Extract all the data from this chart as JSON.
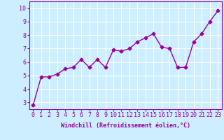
{
  "x": [
    0,
    1,
    2,
    3,
    4,
    5,
    6,
    7,
    8,
    9,
    10,
    11,
    12,
    13,
    14,
    15,
    16,
    17,
    18,
    19,
    20,
    21,
    22,
    23
  ],
  "y": [
    2.8,
    4.9,
    4.9,
    5.1,
    5.5,
    5.6,
    6.2,
    5.6,
    6.2,
    5.6,
    6.9,
    6.8,
    7.0,
    7.5,
    7.8,
    8.1,
    7.1,
    7.0,
    5.6,
    5.6,
    7.5,
    8.1,
    9.0,
    9.8
  ],
  "line_color": "#990099",
  "marker": "D",
  "marker_size": 2.5,
  "background_color": "#cceeff",
  "grid_color": "#ffffff",
  "xlabel": "Windchill (Refroidissement éolien,°C)",
  "ylim": [
    2.5,
    10.5
  ],
  "xlim": [
    -0.5,
    23.5
  ],
  "yticks": [
    3,
    4,
    5,
    6,
    7,
    8,
    9,
    10
  ],
  "xticks": [
    0,
    1,
    2,
    3,
    4,
    5,
    6,
    7,
    8,
    9,
    10,
    11,
    12,
    13,
    14,
    15,
    16,
    17,
    18,
    19,
    20,
    21,
    22,
    23
  ],
  "xlabel_fontsize": 6,
  "tick_fontsize": 6,
  "line_width": 1.0
}
